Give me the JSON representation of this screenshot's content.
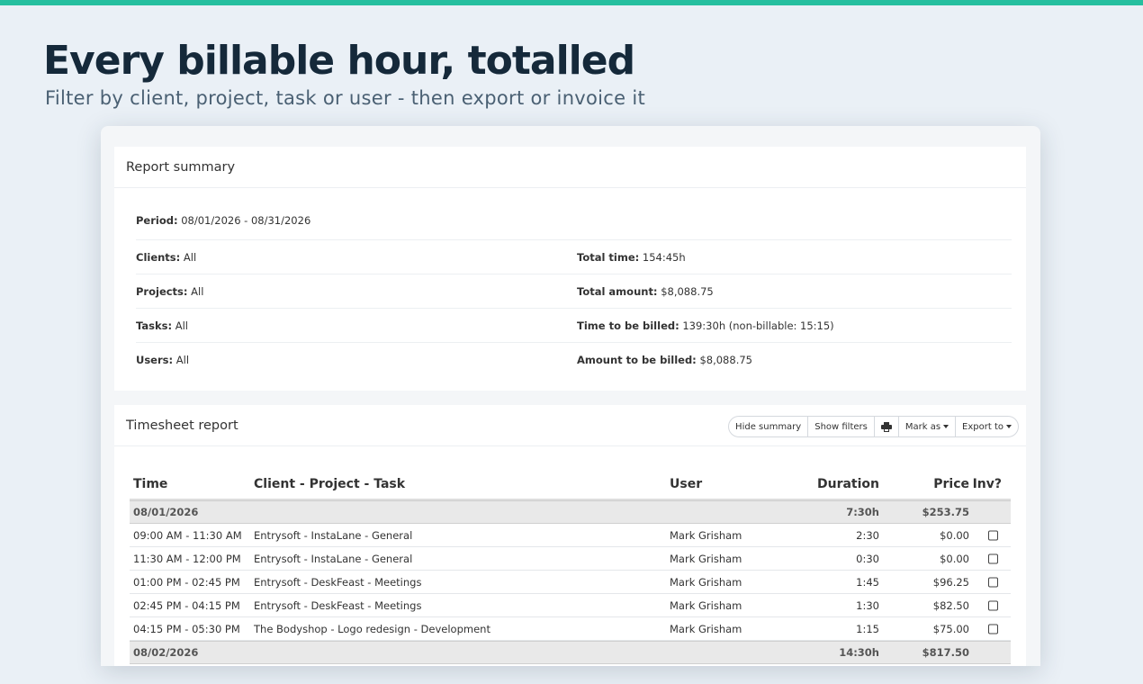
{
  "hero": {
    "title": "Every billable hour, totalled",
    "subtitle": "Filter by client, project, task or user - then export or invoice it"
  },
  "colors": {
    "accent": "#26bf9f",
    "background": "#eaf0f6",
    "group_row": "#e9e9e9"
  },
  "summary": {
    "title": "Report summary",
    "period_label": "Period:",
    "period_value": "08/01/2026 - 08/31/2026",
    "clients_label": "Clients:",
    "clients_value": "All",
    "projects_label": "Projects:",
    "projects_value": "All",
    "tasks_label": "Tasks:",
    "tasks_value": "All",
    "users_label": "Users:",
    "users_value": "All",
    "total_time_label": "Total time:",
    "total_time_value": "154:45h",
    "total_amount_label": "Total amount:",
    "total_amount_value": "$8,088.75",
    "time_billed_label": "Time to be billed:",
    "time_billed_value": "139:30h (non-billable: 15:15)",
    "amount_billed_label": "Amount to be billed:",
    "amount_billed_value": "$8,088.75"
  },
  "report": {
    "title": "Timesheet report",
    "toolbar": {
      "hide_summary": "Hide summary",
      "show_filters": "Show filters",
      "print_icon": "printer-icon",
      "mark_as": "Mark as",
      "export_to": "Export to"
    },
    "columns": {
      "time": "Time",
      "cpt": "Client - Project - Task",
      "user": "User",
      "duration": "Duration",
      "price": "Price",
      "inv": "Inv?"
    },
    "group1": {
      "date": "08/01/2026",
      "duration": "7:30h",
      "price": "$253.75"
    },
    "rows": [
      {
        "time": "09:00 AM - 11:30 AM",
        "cpt": "Entrysoft - InstaLane - General",
        "user": "Mark Grisham",
        "duration": "2:30",
        "price": "$0.00"
      },
      {
        "time": "11:30 AM - 12:00 PM",
        "cpt": "Entrysoft - InstaLane - General",
        "user": "Mark Grisham",
        "duration": "0:30",
        "price": "$0.00"
      },
      {
        "time": "01:00 PM - 02:45 PM",
        "cpt": "Entrysoft - DeskFeast - Meetings",
        "user": "Mark Grisham",
        "duration": "1:45",
        "price": "$96.25"
      },
      {
        "time": "02:45 PM - 04:15 PM",
        "cpt": "Entrysoft - DeskFeast - Meetings",
        "user": "Mark Grisham",
        "duration": "1:30",
        "price": "$82.50"
      },
      {
        "time": "04:15 PM - 05:30 PM",
        "cpt": "The Bodyshop - Logo redesign - Development",
        "user": "Mark Grisham",
        "duration": "1:15",
        "price": "$75.00"
      }
    ],
    "group2": {
      "date": "08/02/2026",
      "duration": "14:30h",
      "price": "$817.50"
    }
  }
}
